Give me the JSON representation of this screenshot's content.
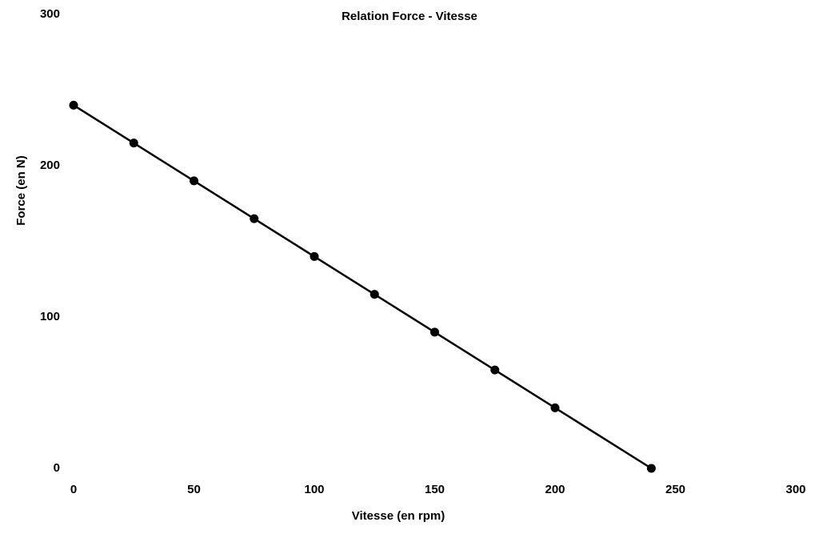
{
  "chart_data": {
    "type": "line",
    "title": "Relation Force - Vitesse",
    "x_label": "Vitesse (en rpm)",
    "y_label": "Force (en N)",
    "x": [
      0,
      25,
      50,
      75,
      100,
      125,
      150,
      175,
      200,
      240
    ],
    "series": [
      {
        "name": "Force",
        "color": "#000000",
        "values": [
          240,
          215,
          190,
          165,
          140,
          115,
          90,
          65,
          40,
          0
        ]
      }
    ],
    "xlim": [
      0,
      300
    ],
    "xticks": [
      0,
      50,
      100,
      150,
      200,
      250,
      300
    ],
    "ylim": [
      0,
      300
    ],
    "yticks": [
      0,
      100,
      200,
      300
    ],
    "grid": false,
    "markers": true
  }
}
